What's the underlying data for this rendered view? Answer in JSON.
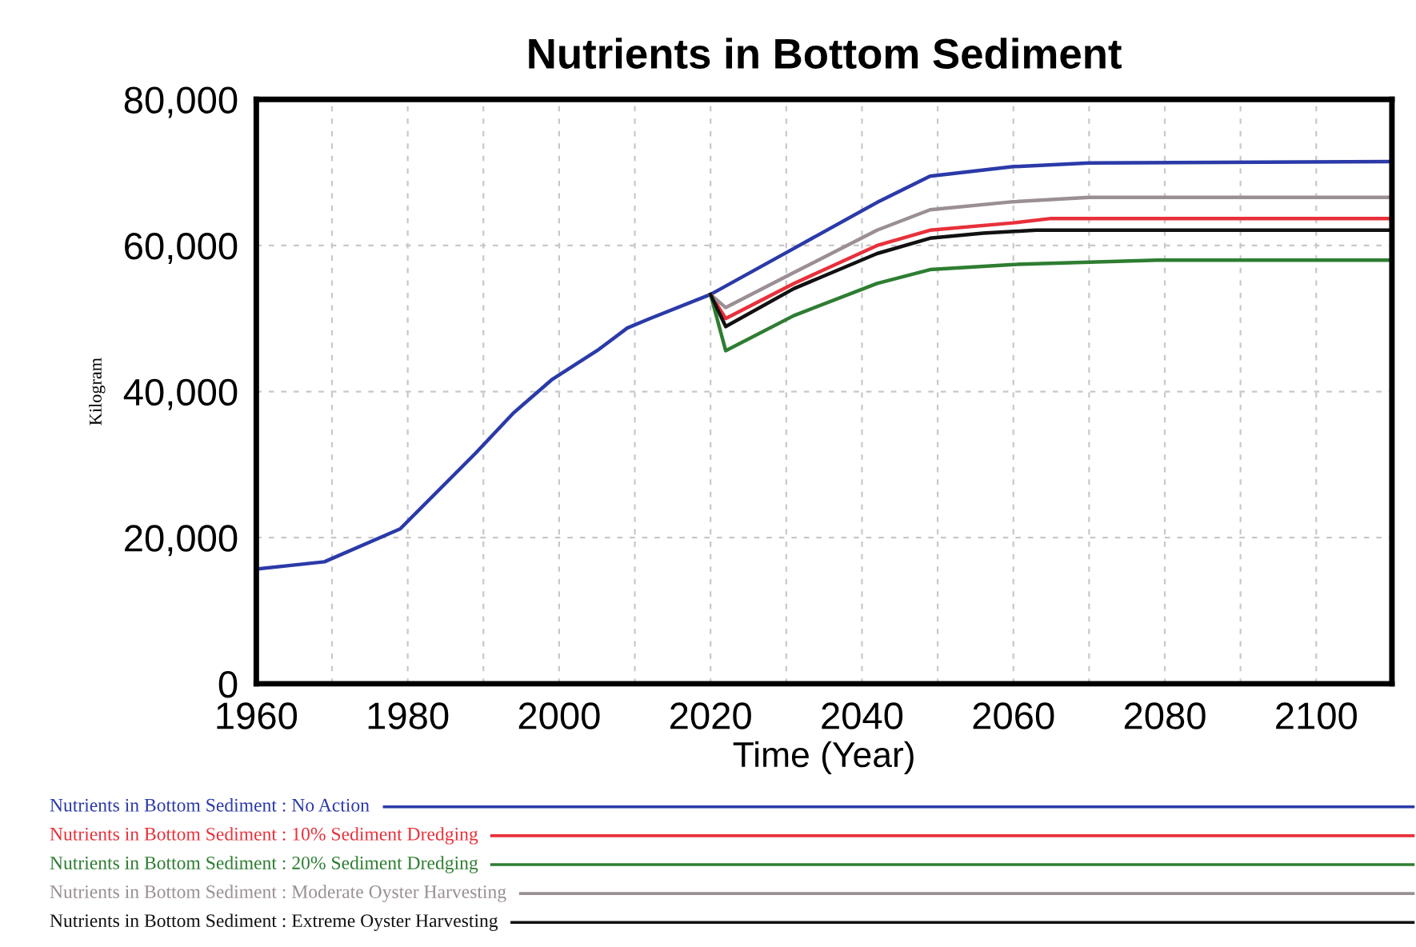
{
  "chart_data": {
    "type": "line",
    "title": "Nutrients in Bottom Sediment",
    "xlabel": "Time (Year)",
    "ylabel": "Kilogram",
    "xlim": [
      1960,
      2110
    ],
    "xticks": [
      1960,
      {
        "value": 1970,
        "label": null
      },
      1980,
      {
        "value": 1990,
        "label": null
      },
      2000,
      {
        "value": 2010,
        "label": null
      },
      2020,
      {
        "value": 2030,
        "label": null
      },
      2040,
      {
        "value": 2050,
        "label": null
      },
      2060,
      {
        "value": 2070,
        "label": null
      },
      2080,
      {
        "value": 2090,
        "label": null
      },
      2100
    ],
    "ylim": [
      0,
      80000
    ],
    "yticks": [
      {
        "value": 0,
        "label": "0"
      },
      {
        "value": 20000,
        "label": "20,000"
      },
      {
        "value": 40000,
        "label": "40,000"
      },
      {
        "value": 60000,
        "label": "60,000"
      },
      {
        "value": 80000,
        "label": "80,000"
      }
    ],
    "grid": true,
    "legend": "bottom",
    "line_style": "solid",
    "marker": "none",
    "series": [
      {
        "name": "Nutrients in Bottom Sediment : No Action",
        "color": "#2b3aa8",
        "x": [
          1960,
          1969,
          1979,
          1989,
          1994,
          1999,
          2005,
          2009,
          2012,
          2020,
          2031,
          2042,
          2049,
          2060,
          2070,
          2110
        ],
        "values": [
          15700,
          16700,
          21200,
          31600,
          37100,
          41600,
          45600,
          48700,
          50000,
          53300,
          59600,
          65900,
          69500,
          70800,
          71300,
          71500
        ]
      },
      {
        "name": "Nutrients in Bottom Sediment : 10% Sediment Dredging",
        "color": "#e8303a",
        "x": [
          2020,
          2022,
          2031,
          2042,
          2049,
          2060,
          2065,
          2110
        ],
        "values": [
          53300,
          50000,
          54800,
          60000,
          62100,
          63100,
          63700,
          63700
        ]
      },
      {
        "name": "Nutrients in Bottom Sediment : 20% Sediment Dredging",
        "color": "#2e7d32",
        "x": [
          2020,
          2022,
          2031,
          2042,
          2049,
          2060,
          2079,
          2110
        ],
        "values": [
          53300,
          45600,
          50400,
          54800,
          56700,
          57400,
          58000,
          58000
        ]
      },
      {
        "name": "Nutrients in Bottom Sediment : Moderate Oyster Harvesting",
        "color": "#9a8f95",
        "x": [
          2020,
          2022,
          2031,
          2042,
          2049,
          2060,
          2070,
          2110
        ],
        "values": [
          53300,
          51500,
          56300,
          62100,
          64900,
          66000,
          66600,
          66600
        ]
      },
      {
        "name": "Nutrients in Bottom Sediment : Extreme Oyster Harvesting",
        "color": "#111111",
        "x": [
          2020,
          2022,
          2031,
          2042,
          2049,
          2056,
          2063,
          2110
        ],
        "values": [
          53300,
          48900,
          54100,
          58900,
          61000,
          61700,
          62100,
          62100
        ]
      }
    ]
  }
}
